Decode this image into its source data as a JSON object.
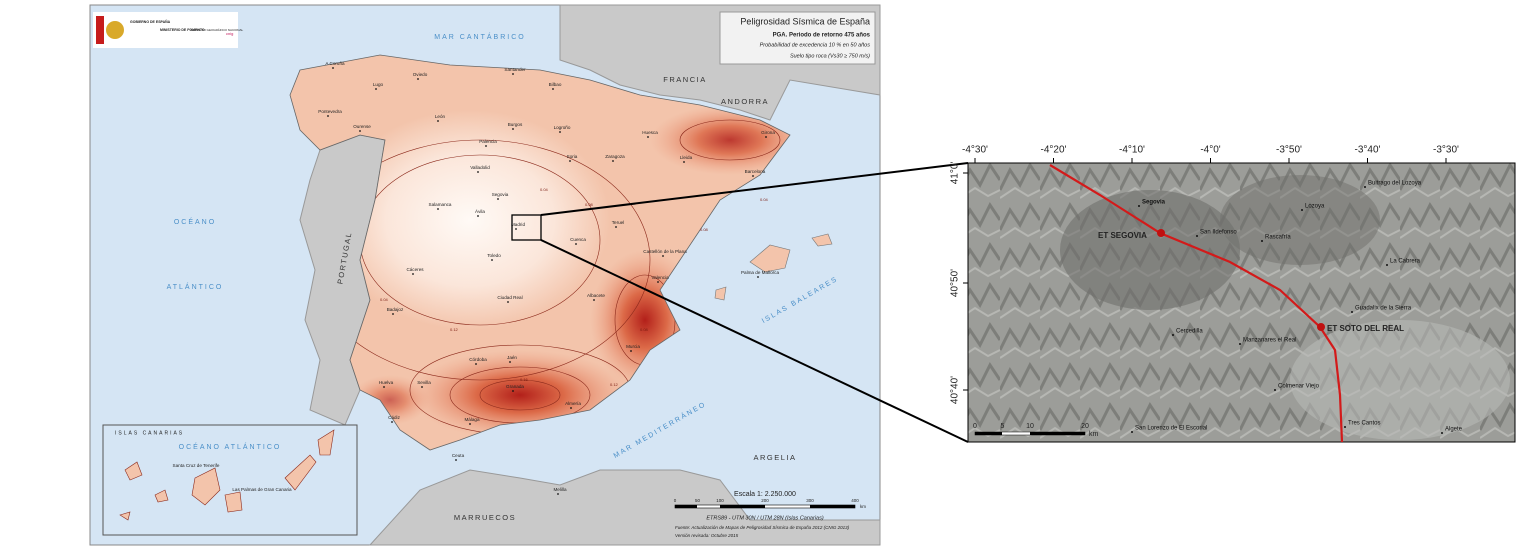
{
  "logos": {
    "gov": "GOBIERNO DE ESPAÑA",
    "ministry": "MINISTERIO DE FOMENTO",
    "ign": "INSTITUTO GEOGRÁFICO NACIONAL",
    "cnig": "cnig"
  },
  "legend": {
    "title": "Peligrosidad Sísmica de España",
    "subtitle": "PGA. Periodo de retorno 475 años",
    "note1": "Probabilidad de excedencia 10 % en 50 años",
    "note2": "Suelo tipo roca (Vs30 ≥ 750 m/s)"
  },
  "seas": [
    "MAR CANTÁBRICO",
    "OCÉANO",
    "ATLÁNTICO",
    "MAR MEDITERRÁNEO",
    "ISLAS BALEARES"
  ],
  "countries": [
    "FRANCIA",
    "ANDORRA",
    "PORTUGAL",
    "MARRUECOS",
    "ARGELIA"
  ],
  "cities": [
    "A Coruña",
    "Lugo",
    "Oviedo",
    "Santander",
    "Bilbao",
    "Pontevedra",
    "Ourense",
    "León",
    "Burgos",
    "Logroño",
    "Huesca",
    "Girona",
    "Lleida",
    "Barcelona",
    "Zaragoza",
    "Soria",
    "Palencia",
    "Valladolid",
    "Segovia",
    "Salamanca",
    "Ávila",
    "Madrid",
    "Teruel",
    "Cuenca",
    "Toledo",
    "Cáceres",
    "Castellón de la Plana",
    "Valencia",
    "Palma de Mallorca",
    "Albacete",
    "Ciudad Real",
    "Badajoz",
    "Córdoba",
    "Jaén",
    "Murcia",
    "Huelva",
    "Sevilla",
    "Granada",
    "Almería",
    "Málaga",
    "Cádiz",
    "Ceuta",
    "Melilla"
  ],
  "contours": [
    "0.04",
    "0.08",
    "0.12",
    "0.16",
    "0.04",
    "0.08",
    "0.12",
    "0.04",
    "0.08"
  ],
  "canarias": {
    "title": "ISLAS CANARIAS",
    "ocean": "OCÉANO ATLÁNTICO",
    "cities": [
      "Santa Cruz de Tenerife",
      "Las Palmas de Gran Canaria"
    ]
  },
  "scale": {
    "label": "Escala 1: 2.250.000",
    "ticks": [
      0,
      50,
      100,
      200,
      300,
      400
    ],
    "unit": "km"
  },
  "footer": [
    "ETRS89 - UTM 30N / UTM 28N (Islas Canarias)",
    "Fuente: Actualización de Mapas de Peligrosidad Sísmica de España 2012 (CNIG 2013)",
    "Versión revisada: Octubre 2015"
  ],
  "inset": {
    "lon_ticks": [
      "-4°30'",
      "-4°20'",
      "-4°10'",
      "-4°0'",
      "-3°50'",
      "-3°40'",
      "-3°30'"
    ],
    "lat_ticks": [
      "41°0'",
      "40°50'",
      "40°40'"
    ],
    "towns": [
      "Segovia",
      "San Ildefonso",
      "Rascafría",
      "Lozoya",
      "Buitrago del Lozoya",
      "La Cabrera",
      "Guadalix de la Sierra",
      "Cercedilla",
      "Manzanares el Real",
      "Colmenar Viejo",
      "Tres Cantos",
      "San Lorenzo de El Escorial",
      "Algete"
    ],
    "stations": [
      "ET SEGOVIA",
      "ET SOTO DEL REAL"
    ],
    "scale_ticks": [
      0,
      5,
      10,
      20
    ],
    "scale_unit": "km"
  }
}
